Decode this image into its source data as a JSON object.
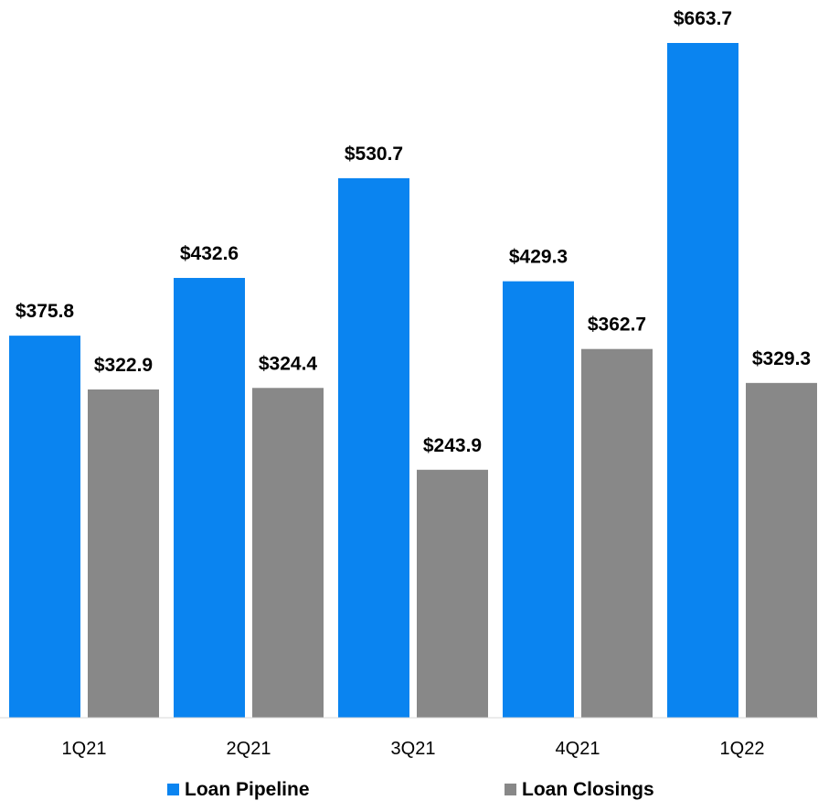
{
  "chart_data": {
    "type": "bar",
    "categories": [
      "1Q21",
      "2Q21",
      "3Q21",
      "4Q21",
      "1Q22"
    ],
    "series": [
      {
        "name": "Loan Pipeline",
        "color": "#0a84f0",
        "values": [
          375.8,
          432.6,
          530.7,
          429.3,
          663.7
        ],
        "labels": [
          "$375.8",
          "$432.6",
          "$530.7",
          "$429.3",
          "$663.7"
        ]
      },
      {
        "name": "Loan Closings",
        "color": "#888888",
        "values": [
          322.9,
          324.4,
          243.9,
          362.7,
          329.3
        ],
        "labels": [
          "$322.9",
          "$324.4",
          "$243.9",
          "$362.7",
          "$329.3"
        ]
      }
    ],
    "ylim": [
      0,
      700
    ],
    "grid": false,
    "legend_position": "bottom"
  }
}
